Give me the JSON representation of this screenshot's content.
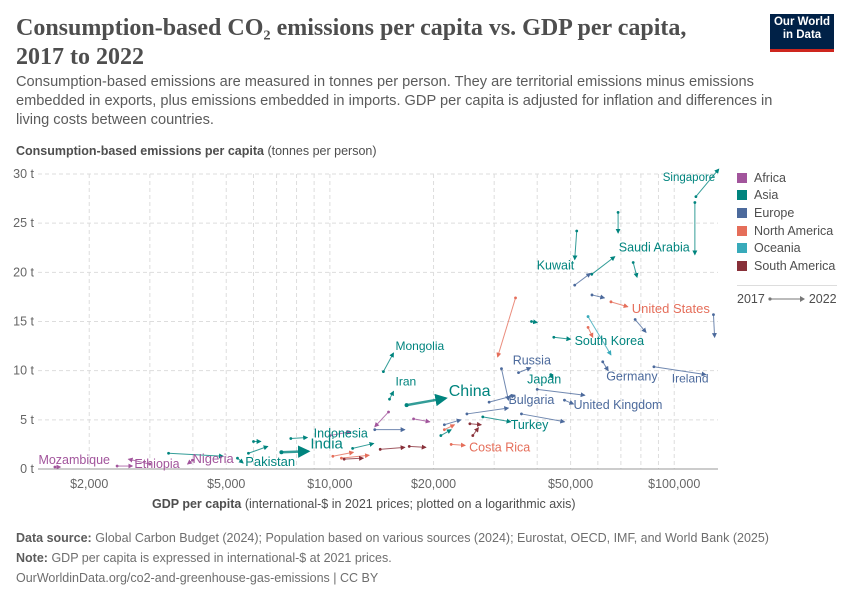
{
  "header": {
    "title": "Consumption-based CO₂ emissions per capita vs. GDP per capita, 2017 to 2022",
    "subtitle": "Consumption-based emissions are measured in tonnes per person. They are territorial emissions minus emissions embedded in exports, plus emissions embedded in imports. GDP per capita is adjusted for inflation and differences in living costs between countries.",
    "logo_line1": "Our World",
    "logo_line2": "in Data"
  },
  "footer": {
    "source_label": "Data source:",
    "source_text": "Global Carbon Budget (2024); Population based on various sources (2024); Eurostat, OECD, IMF, and World Bank (2025)",
    "note_label": "Note:",
    "note_text": "GDP per capita is expressed in international-$ at 2021 prices.",
    "url": "OurWorldinData.org/co2-and-greenhouse-gas-emissions | CC BY"
  },
  "chart_data": {
    "type": "scatter",
    "title": "Consumption-based CO₂ emissions per capita vs. GDP per capita, 2017 to 2022",
    "ylabel_bold": "Consumption-based emissions per capita",
    "ylabel_rest": " (tonnes per person)",
    "xlabel_bold": "GDP per capita",
    "xlabel_rest": " (international-$ in 2021 prices; plotted on a logarithmic axis)",
    "x_scale": "log",
    "xlim": [
      1420,
      134000
    ],
    "ylim": [
      0,
      30
    ],
    "grid": true,
    "x_ticks": [
      2000,
      5000,
      10000,
      20000,
      50000,
      100000
    ],
    "x_tick_labels": [
      "$2,000",
      "$5,000",
      "$10,000",
      "$20,000",
      "$50,000",
      "$100,000"
    ],
    "y_ticks": [
      0,
      5,
      10,
      15,
      20,
      25,
      30
    ],
    "y_tick_labels": [
      "0 t",
      "5 t",
      "10 t",
      "15 t",
      "20 t",
      "25 t",
      "30 t"
    ],
    "legend_position": "right",
    "legend": [
      {
        "name": "Africa",
        "color": "#a2559c"
      },
      {
        "name": "Asia",
        "color": "#00847e"
      },
      {
        "name": "Europe",
        "color": "#4c6a9c"
      },
      {
        "name": "North America",
        "color": "#e56e5a"
      },
      {
        "name": "Oceania",
        "color": "#38aaba"
      },
      {
        "name": "South America",
        "color": "#883039"
      }
    ],
    "time_start": "2017",
    "time_end": "2022",
    "series": [
      {
        "name": "Singapore",
        "region": "Asia",
        "x": [
          115600,
          134700
        ],
        "y": [
          27.7,
          30.5
        ]
      },
      {
        "name": "Saudi Arabia",
        "region": "Asia",
        "x": [
          57600,
          67200
        ],
        "y": [
          19.8,
          21.6
        ]
      },
      {
        "name": "Kuwait",
        "region": "Asia",
        "x": [
          52100,
          51400
        ],
        "y": [
          24.2,
          21.3
        ]
      },
      {
        "name": "United States",
        "region": "North America",
        "x": [
          65500,
          73300
        ],
        "y": [
          17.0,
          16.5
        ]
      },
      {
        "name": "South Korea",
        "region": "Asia",
        "x": [
          44700,
          50000
        ],
        "y": [
          13.4,
          13.2
        ]
      },
      {
        "name": "Mongolia",
        "region": "Asia",
        "x": [
          14300,
          15300
        ],
        "y": [
          9.9,
          11.8
        ]
      },
      {
        "name": "Iran",
        "region": "Asia",
        "x": [
          14900,
          15300
        ],
        "y": [
          7.1,
          7.9
        ]
      },
      {
        "name": "China",
        "region": "Asia",
        "x": [
          16700,
          21700
        ],
        "y": [
          6.5,
          7.2
        ]
      },
      {
        "name": "India",
        "region": "Asia",
        "x": [
          7230,
          8660
        ],
        "y": [
          1.7,
          1.8
        ]
      },
      {
        "name": "Indonesia",
        "region": "Asia",
        "x": [
          11640,
          13400
        ],
        "y": [
          2.1,
          2.6
        ]
      },
      {
        "name": "Pakistan",
        "region": "Asia",
        "x": [
          5390,
          5600
        ],
        "y": [
          1.1,
          0.6
        ]
      },
      {
        "name": "Nigeria",
        "region": "Africa",
        "x": [
          3990,
          3860
        ],
        "y": [
          0.9,
          0.5
        ]
      },
      {
        "name": "Ethiopia",
        "region": "Africa",
        "x": [
          2410,
          2670
        ],
        "y": [
          0.3,
          0.3
        ]
      },
      {
        "name": "Mozambique",
        "region": "Africa",
        "x": [
          1590,
          1650
        ],
        "y": [
          0.2,
          0.2
        ]
      },
      {
        "name": "Russia",
        "region": "Europe",
        "x": [
          35300,
          38300
        ],
        "y": [
          9.8,
          10.3
        ]
      },
      {
        "name": "Japan",
        "region": "Asia",
        "x": [
          43800,
          44500
        ],
        "y": [
          9.6,
          9.2
        ]
      },
      {
        "name": "Germany",
        "region": "Europe",
        "x": [
          62000,
          64300
        ],
        "y": [
          10.9,
          10.0
        ]
      },
      {
        "name": "United Kingdom",
        "region": "Europe",
        "x": [
          48000,
          51000
        ],
        "y": [
          7.0,
          6.6
        ]
      },
      {
        "name": "Ireland",
        "region": "Europe",
        "x": [
          87300,
          123500
        ],
        "y": [
          10.4,
          9.6
        ]
      },
      {
        "name": "Bulgaria",
        "region": "Europe",
        "x": [
          31500,
          33000
        ],
        "y": [
          10.2,
          7.0
        ]
      },
      {
        "name": "Turkey",
        "region": "Asia",
        "x": [
          27800,
          33500
        ],
        "y": [
          5.3,
          4.8
        ]
      },
      {
        "name": "Costa Rica",
        "region": "North America",
        "x": [
          22500,
          24700
        ],
        "y": [
          2.5,
          2.4
        ]
      },
      {
        "region": "North America",
        "x": [
          34600,
          30700
        ],
        "y": [
          17.4,
          11.4
        ]
      },
      {
        "region": "Asia",
        "x": [
          114800,
          114800
        ],
        "y": [
          27.1,
          21.8
        ]
      },
      {
        "region": "Asia",
        "x": [
          68700,
          68700
        ],
        "y": [
          26.1,
          24.0
        ]
      },
      {
        "region": "Asia",
        "x": [
          76000,
          78000
        ],
        "y": [
          21.0,
          19.5
        ]
      },
      {
        "region": "Europe",
        "x": [
          51400,
          57100
        ],
        "y": [
          18.7,
          19.9
        ]
      },
      {
        "region": "Europe",
        "x": [
          57700,
          62700
        ],
        "y": [
          17.7,
          17.4
        ]
      },
      {
        "region": "Europe",
        "x": [
          77000,
          82800
        ],
        "y": [
          15.2,
          13.9
        ]
      },
      {
        "region": "Europe",
        "x": [
          130000,
          131000
        ],
        "y": [
          15.7,
          13.4
        ]
      },
      {
        "region": "Oceania",
        "x": [
          56200,
          65500
        ],
        "y": [
          15.5,
          11.6
        ]
      },
      {
        "region": "North America",
        "x": [
          56200,
          58000
        ],
        "y": [
          14.4,
          13.4
        ]
      },
      {
        "region": "Asia",
        "x": [
          38500,
          40000
        ],
        "y": [
          15.0,
          14.9
        ]
      },
      {
        "region": "Europe",
        "x": [
          29000,
          34500
        ],
        "y": [
          6.8,
          7.5
        ]
      },
      {
        "region": "Europe",
        "x": [
          40000,
          55000
        ],
        "y": [
          8.1,
          7.5
        ]
      },
      {
        "region": "Europe",
        "x": [
          25000,
          33000
        ],
        "y": [
          5.6,
          6.2
        ]
      },
      {
        "region": "Europe",
        "x": [
          36000,
          48000
        ],
        "y": [
          5.6,
          4.8
        ]
      },
      {
        "region": "Europe",
        "x": [
          21500,
          24000
        ],
        "y": [
          4.5,
          5.0
        ]
      },
      {
        "region": "Africa",
        "x": [
          14800,
          13500
        ],
        "y": [
          5.8,
          4.3
        ]
      },
      {
        "region": "Africa",
        "x": [
          17500,
          19500
        ],
        "y": [
          5.1,
          4.8
        ]
      },
      {
        "region": "Africa",
        "x": [
          10000,
          11500
        ],
        "y": [
          3.4,
          3.8
        ]
      },
      {
        "region": "Africa",
        "x": [
          3000,
          2600
        ],
        "y": [
          0.5,
          1.0
        ]
      },
      {
        "region": "Europe",
        "x": [
          13500,
          16500
        ],
        "y": [
          4.0,
          4.0
        ]
      },
      {
        "region": "Asia",
        "x": [
          3400,
          4900
        ],
        "y": [
          1.6,
          1.3
        ]
      },
      {
        "region": "Asia",
        "x": [
          5800,
          6600
        ],
        "y": [
          1.6,
          2.3
        ]
      },
      {
        "region": "Asia",
        "x": [
          7700,
          8600
        ],
        "y": [
          3.1,
          3.2
        ]
      },
      {
        "region": "Asia",
        "x": [
          6000,
          6300
        ],
        "y": [
          2.8,
          2.8
        ]
      },
      {
        "region": "Asia",
        "x": [
          21000,
          22500
        ],
        "y": [
          3.4,
          4.0
        ]
      },
      {
        "region": "North America",
        "x": [
          10200,
          11700
        ],
        "y": [
          1.3,
          1.7
        ]
      },
      {
        "region": "North America",
        "x": [
          10800,
          13000
        ],
        "y": [
          1.1,
          1.4
        ]
      },
      {
        "region": "North America",
        "x": [
          21500,
          23000
        ],
        "y": [
          4.0,
          4.5
        ]
      },
      {
        "region": "South America",
        "x": [
          14000,
          16500
        ],
        "y": [
          2.0,
          2.2
        ]
      },
      {
        "region": "South America",
        "x": [
          17000,
          19000
        ],
        "y": [
          2.3,
          2.2
        ]
      },
      {
        "region": "South America",
        "x": [
          26000,
          27000
        ],
        "y": [
          3.4,
          4.2
        ]
      },
      {
        "region": "South America",
        "x": [
          25500,
          27500
        ],
        "y": [
          4.6,
          4.5
        ]
      },
      {
        "region": "South America",
        "x": [
          11000,
          12500
        ],
        "y": [
          1.0,
          1.1
        ]
      }
    ]
  }
}
